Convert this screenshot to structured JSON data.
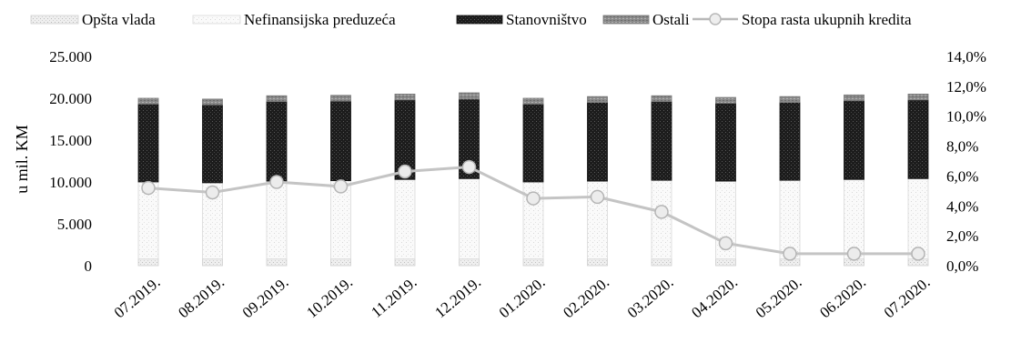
{
  "chart_data": {
    "type": "bar",
    "stacked": true,
    "categories": [
      "07.2019.",
      "08.2019.",
      "09.2019.",
      "10.2019.",
      "11.2019.",
      "12.2019.",
      "01.2020.",
      "02.2020.",
      "03.2020.",
      "04.2020.",
      "05.2020.",
      "06.2020.",
      "07.2020."
    ],
    "series": [
      {
        "name": "Opšta vlada",
        "type": "bar",
        "axis": "left",
        "color": "#e6e6e6",
        "values": [
          800,
          800,
          800,
          800,
          800,
          800,
          800,
          800,
          800,
          800,
          800,
          800,
          800
        ]
      },
      {
        "name": "Nefinansijska preduzeća",
        "type": "bar",
        "axis": "left",
        "color": "#f6f6f6",
        "values": [
          9200,
          9100,
          9300,
          9350,
          9500,
          9600,
          9200,
          9300,
          9400,
          9300,
          9400,
          9500,
          9600
        ]
      },
      {
        "name": "Stanovništvo",
        "type": "bar",
        "axis": "left",
        "color": "#1a1a1a",
        "values": [
          9300,
          9300,
          9500,
          9500,
          9500,
          9500,
          9300,
          9400,
          9400,
          9300,
          9300,
          9400,
          9400
        ]
      },
      {
        "name": "Ostali",
        "type": "bar",
        "axis": "left",
        "color": "#8c8c8c",
        "values": [
          700,
          700,
          700,
          700,
          700,
          750,
          700,
          700,
          700,
          700,
          700,
          700,
          700
        ]
      },
      {
        "name": "Stopa rasta ukupnih kredita",
        "type": "line",
        "axis": "right",
        "color": "#b4b4b4",
        "values": [
          5.2,
          4.9,
          5.6,
          5.3,
          6.3,
          6.6,
          4.5,
          4.6,
          3.6,
          1.5,
          0.8,
          0.8,
          0.8
        ]
      }
    ],
    "ylabel": "u mil. KM",
    "ylim": [
      0,
      25000
    ],
    "yticks": [
      "25.000",
      "20.000",
      "15.000",
      "10.000",
      "5.000",
      "0"
    ],
    "y2lim": [
      0,
      14
    ],
    "y2ticks": [
      "14,0%",
      "12,0%",
      "10,0%",
      "8,0%",
      "6,0%",
      "4,0%",
      "2,0%",
      "0,0%"
    ],
    "legend_position": "top",
    "grid": false
  }
}
